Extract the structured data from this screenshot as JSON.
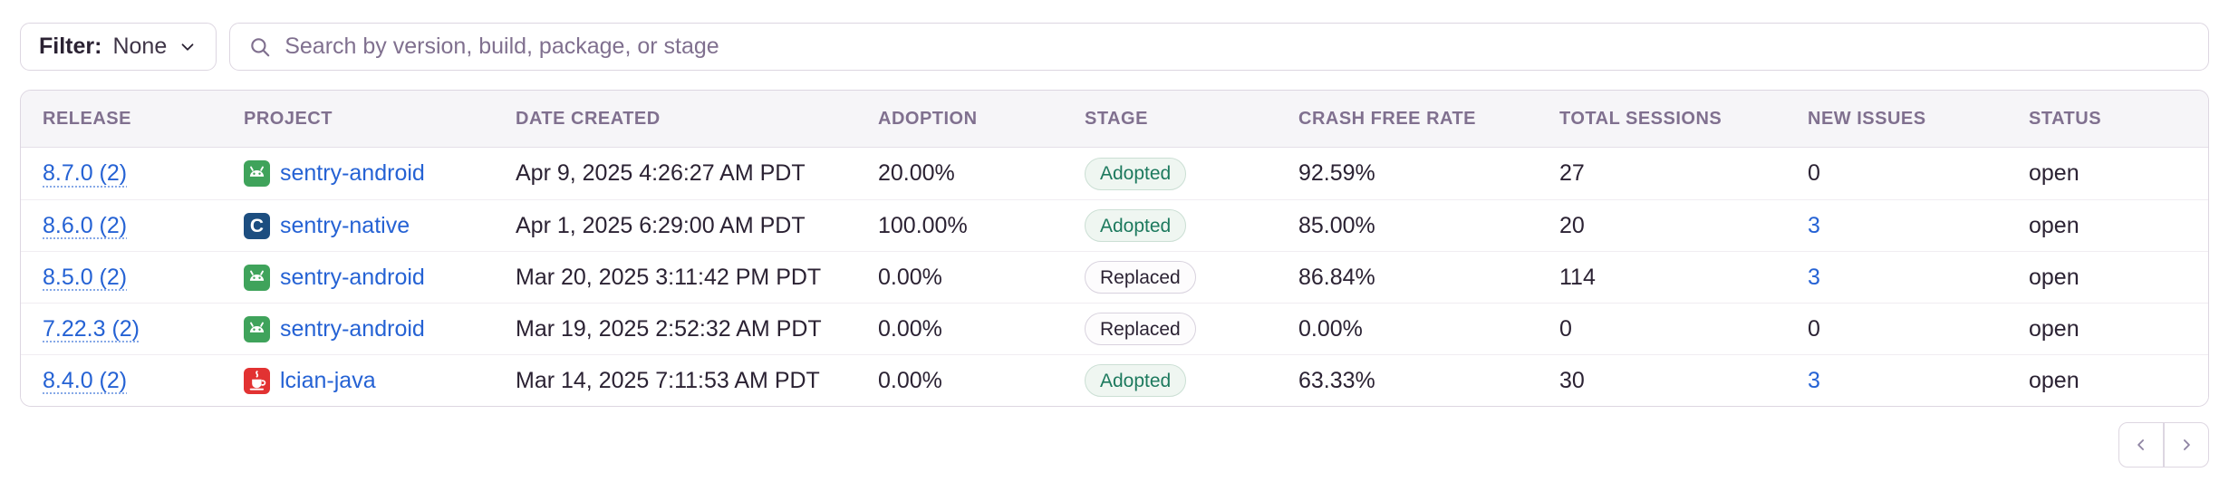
{
  "toolbar": {
    "filter_label": "Filter:",
    "filter_value": "None",
    "search_placeholder": "Search by version, build, package, or stage"
  },
  "table": {
    "columns": [
      "Release",
      "Project",
      "Date Created",
      "Adoption",
      "Stage",
      "Crash Free Rate",
      "Total Sessions",
      "New Issues",
      "Status"
    ],
    "rows": [
      {
        "release": "8.7.0 (2)",
        "project": "sentry-android",
        "project_icon": "android-icon",
        "date_created": "Apr 9, 2025 4:26:27 AM PDT",
        "adoption": "20.00%",
        "stage": "Adopted",
        "crash_free_rate": "92.59%",
        "total_sessions": "27",
        "new_issues": "0",
        "new_issues_is_link": false,
        "status": "open"
      },
      {
        "release": "8.6.0 (2)",
        "project": "sentry-native",
        "project_icon": "c-icon",
        "date_created": "Apr 1, 2025 6:29:00 AM PDT",
        "adoption": "100.00%",
        "stage": "Adopted",
        "crash_free_rate": "85.00%",
        "total_sessions": "20",
        "new_issues": "3",
        "new_issues_is_link": true,
        "status": "open"
      },
      {
        "release": "8.5.0 (2)",
        "project": "sentry-android",
        "project_icon": "android-icon",
        "date_created": "Mar 20, 2025 3:11:42 PM PDT",
        "adoption": "0.00%",
        "stage": "Replaced",
        "crash_free_rate": "86.84%",
        "total_sessions": "114",
        "new_issues": "3",
        "new_issues_is_link": true,
        "status": "open"
      },
      {
        "release": "7.22.3 (2)",
        "project": "sentry-android",
        "project_icon": "android-icon",
        "date_created": "Mar 19, 2025 2:52:32 AM PDT",
        "adoption": "0.00%",
        "stage": "Replaced",
        "crash_free_rate": "0.00%",
        "total_sessions": "0",
        "new_issues": "0",
        "new_issues_is_link": false,
        "status": "open"
      },
      {
        "release": "8.4.0 (2)",
        "project": "lcian-java",
        "project_icon": "java-icon",
        "date_created": "Mar 14, 2025 7:11:53 AM PDT",
        "adoption": "0.00%",
        "stage": "Adopted",
        "crash_free_rate": "63.33%",
        "total_sessions": "30",
        "new_issues": "3",
        "new_issues_is_link": true,
        "status": "open"
      }
    ]
  },
  "pagination": {
    "prev_icon": "chevron-left-icon",
    "next_icon": "chevron-right-icon"
  },
  "colors": {
    "link_blue": "#2562d4",
    "adopted_text": "#1d7a5e",
    "adopted_bg": "#eff6f1",
    "android_green": "#3fa35b",
    "c_navy": "#1d4e80",
    "java_red": "#e23232"
  }
}
